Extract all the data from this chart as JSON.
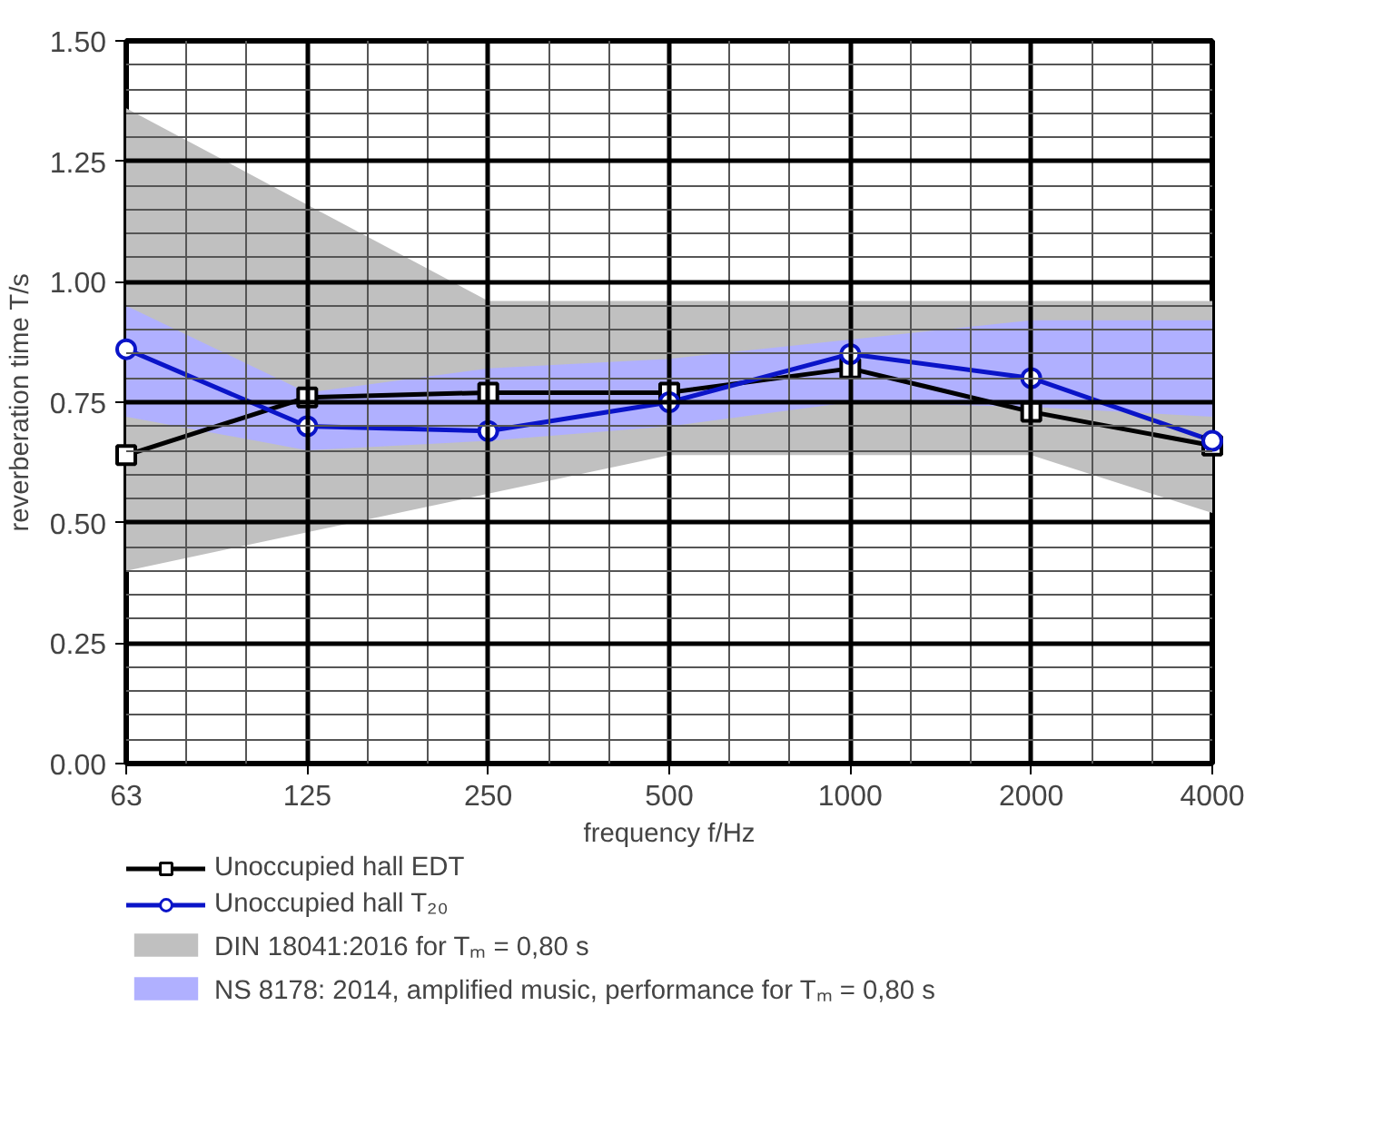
{
  "chart_data": {
    "type": "line",
    "xlabel": "frequency f/Hz",
    "ylabel": "reverberation time T/s",
    "categories": [
      "63",
      "125",
      "250",
      "500",
      "1000",
      "2000",
      "4000"
    ],
    "ylim": [
      0,
      1.5
    ],
    "yticks": [
      {
        "value": 0,
        "label": "0.00"
      },
      {
        "value": 0.25,
        "label": "0.25"
      },
      {
        "value": 0.5,
        "label": "0.50"
      },
      {
        "value": 0.75,
        "label": "0.75"
      },
      {
        "value": 1,
        "label": "1.00"
      },
      {
        "value": 1.25,
        "label": "1.25"
      },
      {
        "value": 1.5,
        "label": "1.50"
      }
    ],
    "grid": true,
    "legend": "bottom",
    "series": [
      {
        "name": "DIN 18041:2016 for Tₘ = 0,80 s",
        "type": "area",
        "color": "#c0c0c0",
        "values": [
          null,
          null,
          null,
          null,
          null,
          null,
          null
        ],
        "lower": [
          0.4,
          0.48,
          0.56,
          0.64,
          0.64,
          0.64,
          0.52
        ],
        "upper": [
          1.36,
          1.16,
          0.96,
          0.96,
          0.96,
          0.96,
          0.96
        ]
      },
      {
        "name": "NS 8178: 2014, amplified music, performance for Tₘ = 0,80 s",
        "type": "area",
        "color": "#b0b0ff",
        "values": [
          null,
          null,
          null,
          null,
          null,
          null,
          null
        ],
        "lower": [
          0.72,
          0.65,
          0.67,
          0.7,
          0.75,
          0.74,
          0.72
        ],
        "upper": [
          0.95,
          0.77,
          0.82,
          0.84,
          0.88,
          0.92,
          0.92
        ]
      },
      {
        "name": "Unoccupied hall EDT",
        "marker": "square",
        "color": "#000000",
        "values": [
          0.64,
          0.76,
          0.77,
          0.77,
          0.82,
          0.73,
          0.66
        ]
      },
      {
        "name": "Unoccupied hall T₂₀",
        "marker": "circle",
        "color": "#0a14c8",
        "values": [
          0.86,
          0.7,
          0.69,
          0.75,
          0.85,
          0.8,
          0.67
        ]
      }
    ]
  }
}
